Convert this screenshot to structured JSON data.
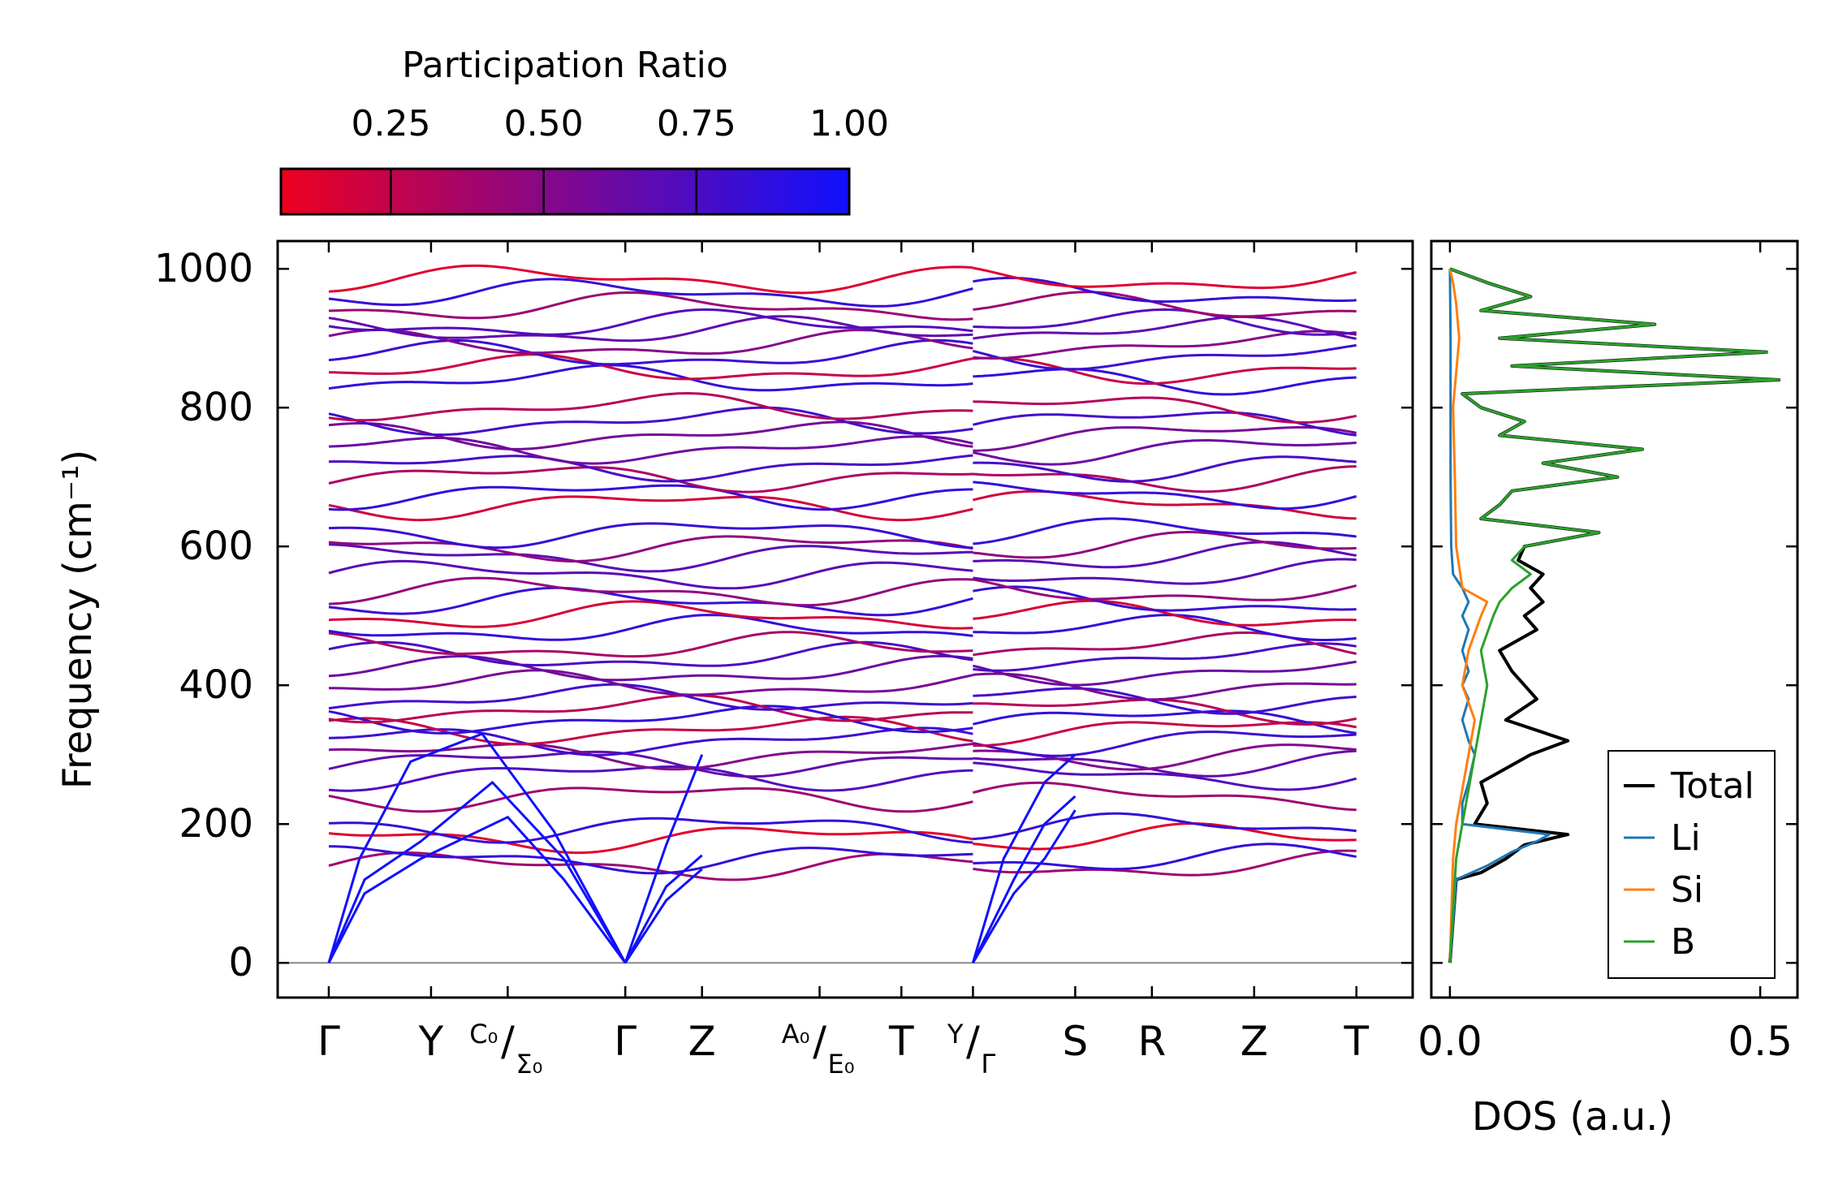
{
  "chart_data": {
    "type": "line",
    "colorbar": {
      "title": "Participation Ratio",
      "ticks": [
        0.25,
        0.5,
        0.75,
        1.0
      ],
      "tick_labels": [
        "0.25",
        "0.50",
        "0.75",
        "1.00"
      ],
      "range": [
        0.07,
        1.0
      ],
      "colors": [
        "#ee0020",
        "#1010ff"
      ]
    },
    "band_panel": {
      "ylabel": "Frequency (cm⁻¹)",
      "ylim": [
        -50,
        1040
      ],
      "yticks": [
        0,
        200,
        400,
        600,
        800,
        1000
      ],
      "ytick_labels": [
        "0",
        "200",
        "400",
        "600",
        "800",
        "1000"
      ],
      "xrange": [
        -0.5,
        10.6
      ],
      "kpoints": [
        {
          "pos": 0,
          "label": "Γ"
        },
        {
          "pos": 1,
          "label": "Y"
        },
        {
          "pos": 1.75,
          "label_num": "C₀",
          "label_den": "Σ₀"
        },
        {
          "pos": 2.9,
          "label": "Γ"
        },
        {
          "pos": 3.65,
          "label": "Z"
        },
        {
          "pos": 4.8,
          "label_num": "A₀",
          "label_den": "E₀"
        },
        {
          "pos": 5.6,
          "label": "T"
        },
        {
          "pos": 6.3,
          "label_num": "Y",
          "label_den": "Γ"
        },
        {
          "pos": 7.3,
          "label": "S"
        },
        {
          "pos": 8.05,
          "label": "R"
        },
        {
          "pos": 9.05,
          "label": "Z"
        },
        {
          "pos": 10.05,
          "label": "T"
        }
      ],
      "segment_breaks": [
        6.3
      ],
      "acoustic_branches": [
        {
          "x": [
            0,
            0.35,
            0.9,
            1.75,
            2.3,
            2.9
          ],
          "y": [
            0,
            100,
            150,
            210,
            120,
            0
          ]
        },
        {
          "x": [
            0,
            0.35,
            0.9,
            1.6,
            2.3,
            2.9
          ],
          "y": [
            0,
            120,
            175,
            260,
            150,
            0
          ]
        },
        {
          "x": [
            0,
            0.3,
            0.8,
            1.5,
            2.2,
            2.9
          ],
          "y": [
            0,
            150,
            290,
            330,
            190,
            0
          ]
        },
        {
          "x": [
            2.9,
            3.3,
            3.65
          ],
          "y": [
            0,
            90,
            135
          ]
        },
        {
          "x": [
            2.9,
            3.3,
            3.65
          ],
          "y": [
            0,
            110,
            155
          ]
        },
        {
          "x": [
            2.9,
            3.3,
            3.65
          ],
          "y": [
            0,
            170,
            300
          ]
        },
        {
          "x": [
            6.3,
            6.7,
            7.0,
            7.3
          ],
          "y": [
            0,
            100,
            150,
            220
          ]
        },
        {
          "x": [
            6.3,
            6.7,
            7.0,
            7.3
          ],
          "y": [
            0,
            120,
            200,
            240
          ]
        },
        {
          "x": [
            6.3,
            6.6,
            7.0,
            7.3
          ],
          "y": [
            0,
            150,
            260,
            300
          ]
        }
      ],
      "optical_band_levels": [
        140,
        150,
        180,
        195,
        240,
        270,
        290,
        300,
        320,
        335,
        350,
        365,
        380,
        400,
        420,
        440,
        455,
        480,
        500,
        520,
        535,
        560,
        585,
        600,
        620,
        660,
        675,
        700,
        715,
        740,
        760,
        780,
        800,
        840,
        855,
        875,
        890,
        910,
        920,
        945,
        965,
        985
      ]
    },
    "dos_panel": {
      "xlabel": "DOS (a.u.)",
      "xlim": [
        -0.03,
        0.56
      ],
      "xticks": [
        0.0,
        0.5
      ],
      "xtick_labels": [
        "0.0",
        "0.5"
      ],
      "ylim": [
        -50,
        1040
      ],
      "series": [
        {
          "name": "Total",
          "color": "#000000",
          "freq": [
            0,
            120,
            130,
            150,
            170,
            185,
            200,
            230,
            260,
            300,
            320,
            350,
            380,
            400,
            420,
            450,
            480,
            500,
            520,
            540,
            560,
            580,
            600,
            620,
            640,
            660,
            680,
            700,
            720,
            740,
            760,
            780,
            800,
            820,
            840,
            860,
            880,
            900,
            920,
            940,
            960,
            980,
            1000
          ],
          "dos": [
            0,
            0.01,
            0.05,
            0.09,
            0.12,
            0.19,
            0.04,
            0.06,
            0.05,
            0.13,
            0.19,
            0.09,
            0.14,
            0.12,
            0.1,
            0.08,
            0.14,
            0.12,
            0.15,
            0.13,
            0.15,
            0.11,
            0.12,
            0.24,
            0.05,
            0.08,
            0.1,
            0.27,
            0.15,
            0.31,
            0.08,
            0.12,
            0.05,
            0.02,
            0.53,
            0.1,
            0.51,
            0.08,
            0.33,
            0.05,
            0.13,
            0.06,
            0
          ]
        },
        {
          "name": "Li",
          "color": "#1f77b4",
          "freq": [
            0,
            120,
            140,
            160,
            175,
            185,
            200,
            230,
            260,
            300,
            320,
            350,
            380,
            400,
            420,
            450,
            480,
            500,
            520,
            540,
            560,
            600,
            700,
            800,
            900,
            1000
          ],
          "dos": [
            0,
            0.01,
            0.06,
            0.1,
            0.14,
            0.16,
            0.02,
            0.02,
            0.03,
            0.04,
            0.03,
            0.02,
            0.03,
            0.02,
            0.03,
            0.02,
            0.03,
            0.02,
            0.03,
            0.02,
            0.005,
            0.002,
            0.001,
            0.001,
            0.001,
            0
          ]
        },
        {
          "name": "Si",
          "color": "#ff7f0e",
          "freq": [
            0,
            150,
            200,
            250,
            300,
            350,
            400,
            450,
            500,
            520,
            540,
            600,
            700,
            800,
            850,
            900,
            950,
            980,
            1000
          ],
          "dos": [
            0,
            0.005,
            0.01,
            0.02,
            0.03,
            0.04,
            0.02,
            0.03,
            0.05,
            0.06,
            0.02,
            0.01,
            0.008,
            0.005,
            0.01,
            0.015,
            0.01,
            0.005,
            0
          ]
        },
        {
          "name": "B",
          "color": "#2ca02c",
          "freq": [
            0,
            150,
            200,
            250,
            300,
            350,
            400,
            450,
            500,
            520,
            540,
            560,
            580,
            600,
            620,
            640,
            660,
            680,
            700,
            720,
            740,
            760,
            780,
            800,
            820,
            840,
            860,
            880,
            900,
            920,
            940,
            960,
            980,
            1000
          ],
          "dos": [
            0,
            0.01,
            0.02,
            0.03,
            0.04,
            0.05,
            0.06,
            0.05,
            0.07,
            0.08,
            0.1,
            0.13,
            0.1,
            0.12,
            0.24,
            0.05,
            0.08,
            0.1,
            0.27,
            0.15,
            0.31,
            0.08,
            0.12,
            0.05,
            0.02,
            0.53,
            0.1,
            0.51,
            0.08,
            0.33,
            0.05,
            0.13,
            0.06,
            0
          ]
        }
      ]
    },
    "legend": {
      "placement": "lower-right",
      "entries": [
        "Total",
        "Li",
        "Si",
        "B"
      ]
    }
  }
}
